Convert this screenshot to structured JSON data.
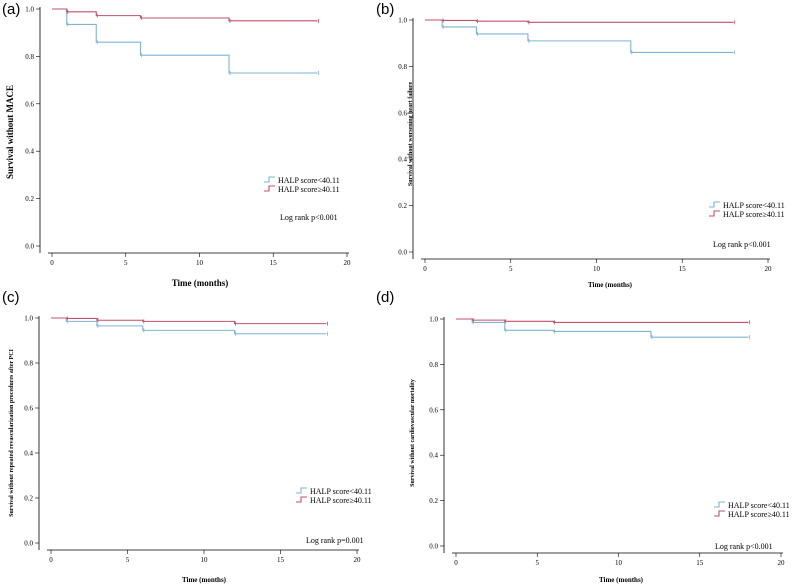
{
  "chart_data": [
    {
      "panel_label": "(a)",
      "type": "line",
      "step": true,
      "xlabel": "Time (months)",
      "ylabel": "Survival without MACE",
      "xlim": [
        0,
        20
      ],
      "ylim": [
        0,
        1.0
      ],
      "xticks": [
        "0",
        "5",
        "10",
        "15",
        "20"
      ],
      "yticks": [
        "0.0",
        "0.2",
        "0.4",
        "0.6",
        "0.8",
        "1.0"
      ],
      "series": [
        {
          "name": "HALP score<40.11",
          "color": "#7fb3d5",
          "times": [
            0,
            1,
            3,
            6,
            12,
            18
          ],
          "values": [
            1.0,
            0.935,
            0.86,
            0.805,
            0.73,
            0.73
          ]
        },
        {
          "name": "HALP score≥40.11",
          "color": "#c0506b",
          "times": [
            0,
            1,
            3,
            6,
            12,
            18
          ],
          "values": [
            1.0,
            0.988,
            0.972,
            0.962,
            0.95,
            0.95
          ]
        }
      ],
      "annotation": "Log rank p<0.001"
    },
    {
      "panel_label": "(b)",
      "type": "line",
      "step": true,
      "xlabel": "Time (months)",
      "ylabel": "Survival without worsening heart failure",
      "xlim": [
        0,
        20
      ],
      "ylim": [
        0,
        1.0
      ],
      "xticks": [
        "0",
        "5",
        "10",
        "15",
        "20"
      ],
      "yticks": [
        "0.0",
        "0.2",
        "0.4",
        "0.6",
        "0.8",
        "1.0"
      ],
      "series": [
        {
          "name": "HALP score<40.11",
          "color": "#7fb3d5",
          "times": [
            0,
            1,
            3,
            6,
            12,
            18
          ],
          "values": [
            1.0,
            0.97,
            0.94,
            0.91,
            0.86,
            0.86
          ]
        },
        {
          "name": "HALP score≥40.11",
          "color": "#c0506b",
          "times": [
            0,
            1,
            3,
            6,
            18
          ],
          "values": [
            1.0,
            0.998,
            0.995,
            0.99,
            0.99
          ]
        }
      ],
      "annotation": "Log rank p<0.001"
    },
    {
      "panel_label": "(c)",
      "type": "line",
      "step": true,
      "xlabel": "Time (months)",
      "ylabel": "Survival without repeated revascularization procedures after PCI",
      "xlim": [
        0,
        20
      ],
      "ylim": [
        0,
        1.0
      ],
      "xticks": [
        "0",
        "5",
        "10",
        "15",
        "20"
      ],
      "yticks": [
        "0.0",
        "0.2",
        "0.4",
        "0.6",
        "0.8",
        "1.0"
      ],
      "series": [
        {
          "name": "HALP score<40.11",
          "color": "#7fb3d5",
          "times": [
            0,
            1,
            3,
            6,
            12,
            18
          ],
          "values": [
            1.0,
            0.985,
            0.965,
            0.945,
            0.93,
            0.93
          ]
        },
        {
          "name": "HALP score≥40.11",
          "color": "#c0506b",
          "times": [
            0,
            1,
            3,
            6,
            12,
            18
          ],
          "values": [
            1.0,
            0.998,
            0.99,
            0.985,
            0.975,
            0.975
          ]
        }
      ],
      "annotation": "Log rank p=0.001"
    },
    {
      "panel_label": "(d)",
      "type": "line",
      "step": true,
      "xlabel": "Time (months)",
      "ylabel": "Survival without cardiovascular mortality",
      "xlim": [
        0,
        20
      ],
      "ylim": [
        0,
        1.0
      ],
      "xticks": [
        "0",
        "5",
        "10",
        "15",
        "20"
      ],
      "yticks": [
        "0.0",
        "0.2",
        "0.4",
        "0.6",
        "0.8",
        "1.0"
      ],
      "series": [
        {
          "name": "HALP score<40.11",
          "color": "#7fb3d5",
          "times": [
            0,
            1,
            3,
            6,
            12,
            18
          ],
          "values": [
            1.0,
            0.985,
            0.95,
            0.945,
            0.92,
            0.92
          ]
        },
        {
          "name": "HALP score≥40.11",
          "color": "#c0506b",
          "times": [
            0,
            1,
            3,
            6,
            18
          ],
          "values": [
            1.0,
            0.995,
            0.99,
            0.985,
            0.985
          ]
        }
      ],
      "annotation": "Log rank p<0.001"
    }
  ]
}
